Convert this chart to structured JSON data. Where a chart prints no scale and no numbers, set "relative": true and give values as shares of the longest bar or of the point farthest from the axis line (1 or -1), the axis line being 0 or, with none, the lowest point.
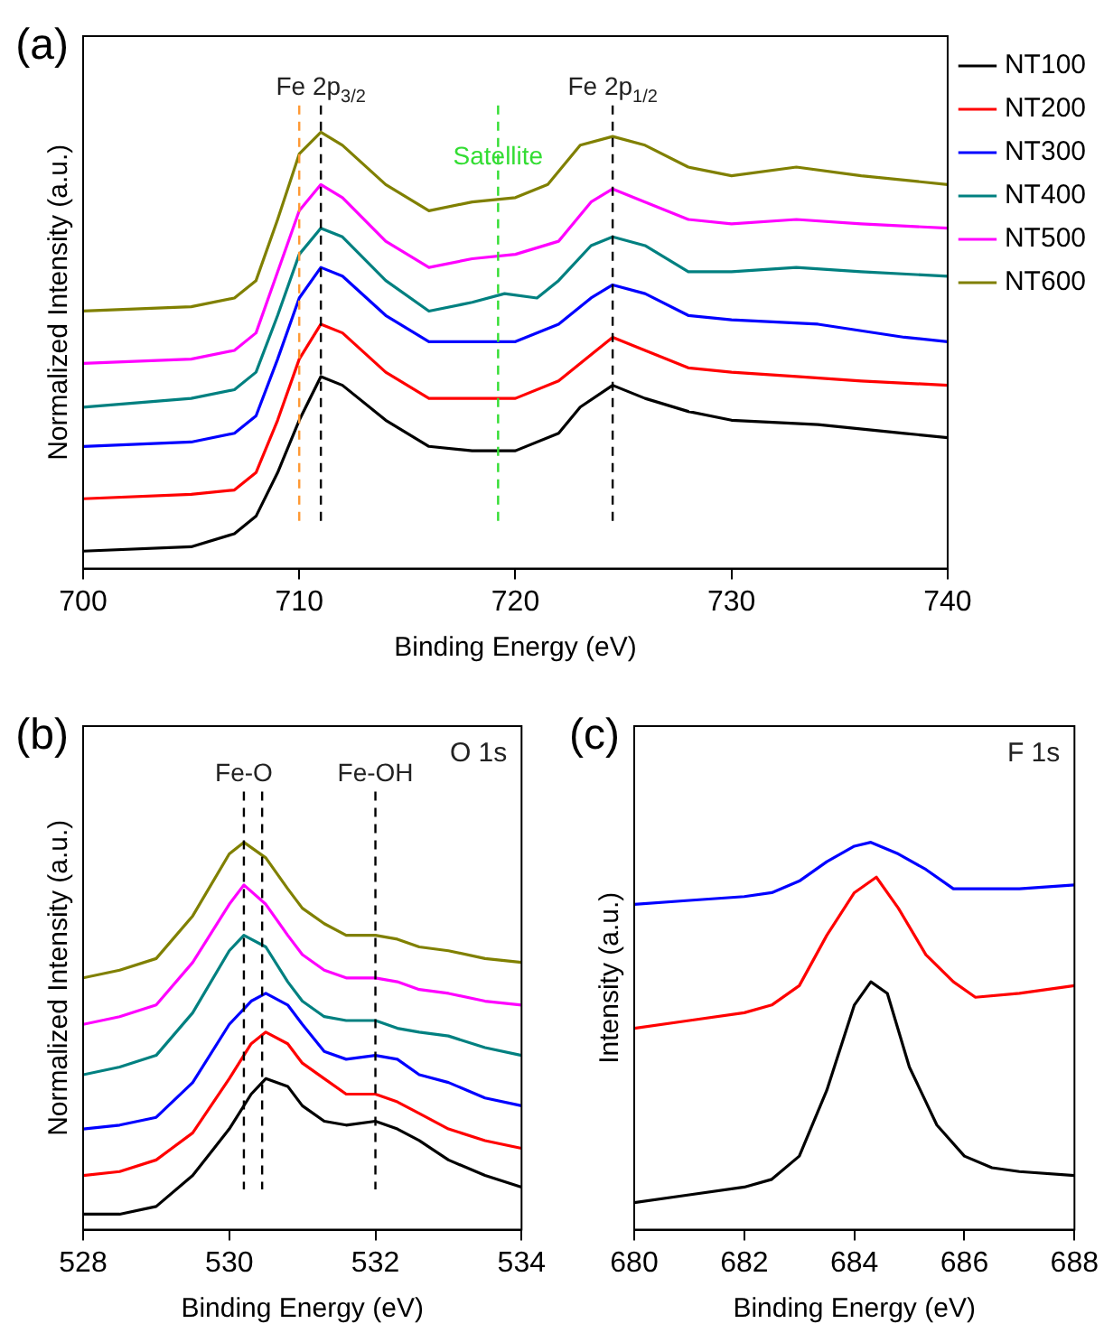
{
  "chart_data": [
    {
      "type": "line",
      "title": "(a)",
      "xlabel": "Binding Energy (eV)",
      "ylabel": "Normalized Intensity (a.u.)",
      "relative": true,
      "xlim": [
        700,
        740
      ],
      "xticks": [
        700,
        710,
        720,
        730,
        740
      ],
      "grid": false,
      "legend": "right",
      "line_style": "solid",
      "marker": "none",
      "ref_lines": [
        {
          "axis": "x",
          "value": 711,
          "label": "Fe 2p$_{3/2}$",
          "color": "#000000",
          "line_style": "dashed"
        },
        {
          "axis": "x",
          "value": 724.5,
          "label": "Fe 2p$_{1/2}$",
          "color": "#000000",
          "line_style": "dashed"
        },
        {
          "axis": "x",
          "value": 719.2,
          "label": "Satellite",
          "color": "#33dd33",
          "line_style": "dashed"
        },
        {
          "axis": "x",
          "value": 710,
          "label": null,
          "color": "#ff9933",
          "line_style": "dashed"
        }
      ],
      "series": [
        {
          "name": "NT100",
          "color": "#000000",
          "x": [
            700,
            705,
            707,
            708,
            709,
            710,
            711,
            712,
            714,
            716,
            718,
            720,
            722,
            723,
            724.5,
            726,
            728,
            730,
            734,
            738,
            740
          ],
          "values": [
            0.04,
            0.05,
            0.08,
            0.12,
            0.22,
            0.34,
            0.44,
            0.42,
            0.34,
            0.28,
            0.27,
            0.27,
            0.31,
            0.37,
            0.42,
            0.39,
            0.36,
            0.34,
            0.33,
            0.31,
            0.3
          ]
        },
        {
          "name": "NT200",
          "color": "#ff0000",
          "x": [
            700,
            705,
            707,
            708,
            709,
            710,
            711,
            712,
            714,
            716,
            718,
            720,
            722,
            723.5,
            724.5,
            726,
            728,
            730,
            733,
            736,
            740
          ],
          "values": [
            0.16,
            0.17,
            0.18,
            0.22,
            0.34,
            0.48,
            0.56,
            0.54,
            0.45,
            0.39,
            0.39,
            0.39,
            0.43,
            0.49,
            0.53,
            0.5,
            0.46,
            0.45,
            0.44,
            0.43,
            0.42
          ]
        },
        {
          "name": "NT300",
          "color": "#0000ff",
          "x": [
            700,
            705,
            707,
            708,
            709,
            710,
            711,
            712,
            714,
            716,
            718,
            720,
            722,
            723.5,
            724.5,
            726,
            728,
            730,
            734,
            738,
            740
          ],
          "values": [
            0.28,
            0.29,
            0.31,
            0.35,
            0.48,
            0.62,
            0.69,
            0.67,
            0.58,
            0.52,
            0.52,
            0.52,
            0.56,
            0.62,
            0.65,
            0.63,
            0.58,
            0.57,
            0.56,
            0.53,
            0.52
          ]
        },
        {
          "name": "NT400",
          "color": "#008080",
          "x": [
            700,
            705,
            707,
            708,
            709,
            710,
            711,
            712,
            714,
            716,
            718,
            719.5,
            721,
            722,
            723.5,
            724.5,
            726,
            728,
            730,
            733,
            736,
            740
          ],
          "values": [
            0.37,
            0.39,
            0.41,
            0.45,
            0.58,
            0.72,
            0.78,
            0.76,
            0.66,
            0.59,
            0.61,
            0.63,
            0.62,
            0.66,
            0.74,
            0.76,
            0.74,
            0.68,
            0.68,
            0.69,
            0.68,
            0.67
          ]
        },
        {
          "name": "NT500",
          "color": "#ff00ff",
          "x": [
            700,
            705,
            707,
            708,
            709,
            710,
            711,
            712,
            714,
            716,
            718,
            720,
            722,
            723.5,
            724.5,
            726,
            728,
            730,
            733,
            736,
            740
          ],
          "values": [
            0.47,
            0.48,
            0.5,
            0.54,
            0.68,
            0.82,
            0.88,
            0.85,
            0.75,
            0.69,
            0.71,
            0.72,
            0.75,
            0.84,
            0.87,
            0.84,
            0.8,
            0.79,
            0.8,
            0.79,
            0.78
          ]
        },
        {
          "name": "NT600",
          "color": "#808000",
          "x": [
            700,
            705,
            707,
            708,
            709,
            710,
            711,
            712,
            714,
            716,
            718,
            720,
            721.5,
            723,
            724.5,
            726,
            728,
            730,
            733,
            736,
            740
          ],
          "values": [
            0.59,
            0.6,
            0.62,
            0.66,
            0.8,
            0.95,
            1,
            0.97,
            0.88,
            0.82,
            0.84,
            0.85,
            0.88,
            0.97,
            0.99,
            0.97,
            0.92,
            0.9,
            0.92,
            0.9,
            0.88
          ]
        }
      ]
    },
    {
      "type": "line",
      "title": "(b)",
      "xlabel": "Binding Energy (eV)",
      "ylabel": "Normalized Intensity (a.u.)",
      "relative": true,
      "xlim": [
        528,
        534
      ],
      "xticks": [
        528,
        530,
        532,
        534
      ],
      "grid": false,
      "line_style": "solid",
      "marker": "none",
      "annotations": [
        "O 1s"
      ],
      "ref_lines": [
        {
          "axis": "x",
          "value": 530.2,
          "label": "Fe-O",
          "color": "#000000",
          "line_style": "dashed"
        },
        {
          "axis": "x",
          "value": 530.45,
          "label": null,
          "color": "#000000",
          "line_style": "dashed"
        },
        {
          "axis": "x",
          "value": 532,
          "label": "Fe-OH",
          "color": "#000000",
          "line_style": "dashed"
        }
      ],
      "series": [
        {
          "color": "#000000",
          "x": [
            528,
            528.5,
            529,
            529.5,
            530,
            530.3,
            530.5,
            530.8,
            531,
            531.3,
            531.6,
            532,
            532.3,
            532.6,
            533,
            533.5,
            534
          ],
          "values": [
            0.04,
            0.04,
            0.06,
            0.14,
            0.26,
            0.35,
            0.39,
            0.37,
            0.32,
            0.28,
            0.27,
            0.28,
            0.26,
            0.23,
            0.18,
            0.14,
            0.11
          ]
        },
        {
          "color": "#ff0000",
          "x": [
            528,
            528.5,
            529,
            529.5,
            530,
            530.3,
            530.5,
            530.8,
            531,
            531.3,
            531.6,
            532,
            532.3,
            532.6,
            533,
            533.5,
            534
          ],
          "values": [
            0.14,
            0.15,
            0.18,
            0.25,
            0.39,
            0.48,
            0.51,
            0.48,
            0.43,
            0.39,
            0.35,
            0.35,
            0.33,
            0.3,
            0.26,
            0.23,
            0.21
          ]
        },
        {
          "color": "#0000ff",
          "x": [
            528,
            528.5,
            529,
            529.5,
            530,
            530.3,
            530.5,
            530.8,
            531,
            531.3,
            531.6,
            532,
            532.3,
            532.6,
            533,
            533.5,
            534
          ],
          "values": [
            0.26,
            0.27,
            0.29,
            0.38,
            0.53,
            0.59,
            0.61,
            0.58,
            0.53,
            0.46,
            0.44,
            0.45,
            0.44,
            0.4,
            0.38,
            0.34,
            0.32
          ]
        },
        {
          "color": "#008080",
          "x": [
            528,
            528.5,
            529,
            529.5,
            530,
            530.2,
            530.5,
            530.8,
            531,
            531.3,
            531.6,
            532,
            532.3,
            532.6,
            533,
            533.5,
            534
          ],
          "values": [
            0.4,
            0.42,
            0.45,
            0.56,
            0.72,
            0.76,
            0.73,
            0.64,
            0.59,
            0.55,
            0.54,
            0.54,
            0.52,
            0.51,
            0.5,
            0.47,
            0.45
          ]
        },
        {
          "color": "#ff00ff",
          "x": [
            528,
            528.5,
            529,
            529.5,
            530,
            530.2,
            530.5,
            530.8,
            531,
            531.3,
            531.6,
            532,
            532.3,
            532.6,
            533,
            533.5,
            534
          ],
          "values": [
            0.53,
            0.55,
            0.58,
            0.69,
            0.84,
            0.89,
            0.84,
            0.76,
            0.71,
            0.67,
            0.65,
            0.65,
            0.64,
            0.62,
            0.61,
            0.59,
            0.58
          ]
        },
        {
          "color": "#808000",
          "x": [
            528,
            528.5,
            529,
            529.5,
            530,
            530.2,
            530.5,
            530.8,
            531,
            531.3,
            531.6,
            532,
            532.3,
            532.6,
            533,
            533.5,
            534
          ],
          "values": [
            0.65,
            0.67,
            0.7,
            0.81,
            0.97,
            1,
            0.96,
            0.88,
            0.83,
            0.79,
            0.76,
            0.76,
            0.75,
            0.73,
            0.72,
            0.7,
            0.69
          ]
        }
      ]
    },
    {
      "type": "line",
      "title": "(c)",
      "xlabel": "Binding Energy (eV)",
      "ylabel": "Intensity (a.u.)",
      "relative": true,
      "xlim": [
        680,
        688
      ],
      "xticks": [
        680,
        682,
        684,
        686,
        688
      ],
      "grid": false,
      "line_style": "solid",
      "marker": "none",
      "annotations": [
        "F 1s"
      ],
      "series": [
        {
          "color": "#000000",
          "x": [
            680,
            681,
            682,
            682.5,
            683,
            683.5,
            684,
            684.3,
            684.6,
            685,
            685.5,
            686,
            686.5,
            687,
            688
          ],
          "values": [
            0.07,
            0.09,
            0.11,
            0.13,
            0.19,
            0.36,
            0.58,
            0.64,
            0.61,
            0.42,
            0.27,
            0.19,
            0.16,
            0.15,
            0.14
          ]
        },
        {
          "color": "#ff0000",
          "x": [
            680,
            681,
            682,
            682.5,
            683,
            683.5,
            684,
            684.4,
            684.8,
            685.3,
            685.8,
            686.2,
            687,
            688
          ],
          "values": [
            0.52,
            0.54,
            0.56,
            0.58,
            0.63,
            0.76,
            0.87,
            0.91,
            0.83,
            0.71,
            0.64,
            0.6,
            0.61,
            0.63
          ]
        },
        {
          "color": "#0000ff",
          "x": [
            680,
            681,
            682,
            682.5,
            683,
            683.5,
            684,
            684.3,
            684.8,
            685.3,
            685.8,
            686.5,
            687,
            688
          ],
          "values": [
            0.84,
            0.85,
            0.86,
            0.87,
            0.9,
            0.95,
            0.99,
            1,
            0.97,
            0.93,
            0.88,
            0.88,
            0.88,
            0.89
          ]
        }
      ]
    }
  ]
}
